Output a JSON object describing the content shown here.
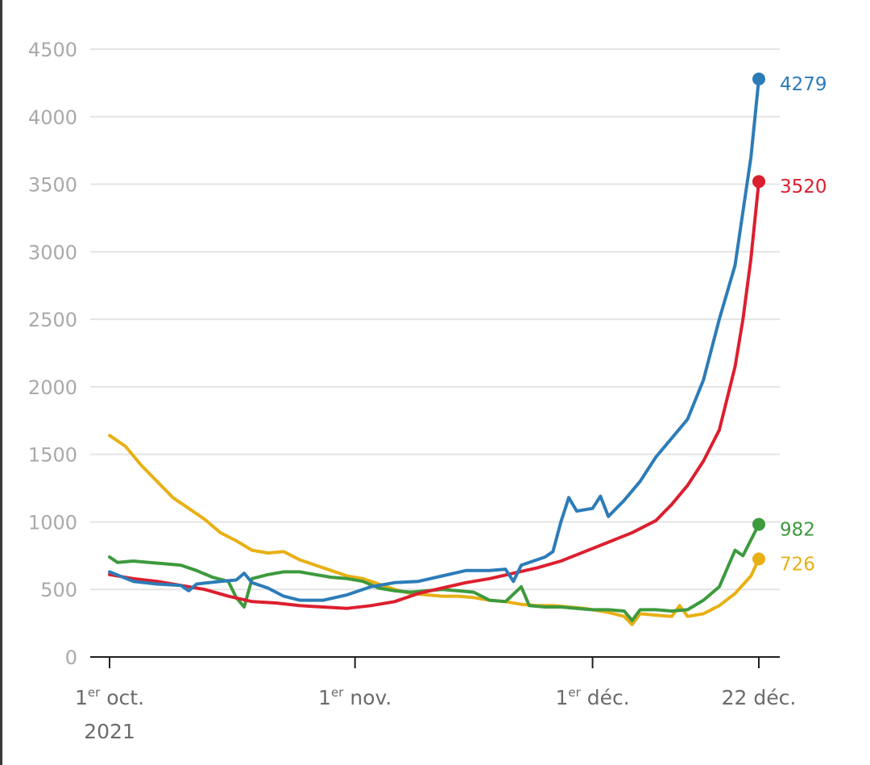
{
  "chart_data": {
    "type": "line",
    "ylim": [
      0,
      4500
    ],
    "yticks": [
      0,
      500,
      1000,
      1500,
      2000,
      2500,
      3000,
      3500,
      4000,
      4500
    ],
    "grid": true,
    "x_domain": [
      "2021-10-01",
      "2021-12-22"
    ],
    "xticks": [
      {
        "date": "2021-10-01",
        "label_main": "1",
        "label_sup": "er",
        "label_rest": " oct.",
        "label_year": "2021"
      },
      {
        "date": "2021-11-01",
        "label_main": "1",
        "label_sup": "er",
        "label_rest": " nov.",
        "label_year": ""
      },
      {
        "date": "2021-12-01",
        "label_main": "1",
        "label_sup": "er",
        "label_rest": " déc.",
        "label_year": ""
      },
      {
        "date": "2021-12-22",
        "label_main": "22 déc.",
        "label_sup": "",
        "label_rest": "",
        "label_year": ""
      }
    ],
    "series": [
      {
        "color": "#e8b015",
        "end_label": "726",
        "points": [
          [
            "2021-10-01",
            1640
          ],
          [
            "2021-10-03",
            1560
          ],
          [
            "2021-10-05",
            1420
          ],
          [
            "2021-10-07",
            1300
          ],
          [
            "2021-10-09",
            1180
          ],
          [
            "2021-10-11",
            1100
          ],
          [
            "2021-10-13",
            1020
          ],
          [
            "2021-10-15",
            920
          ],
          [
            "2021-10-17",
            860
          ],
          [
            "2021-10-19",
            790
          ],
          [
            "2021-10-21",
            770
          ],
          [
            "2021-10-23",
            780
          ],
          [
            "2021-10-25",
            720
          ],
          [
            "2021-10-27",
            680
          ],
          [
            "2021-10-29",
            640
          ],
          [
            "2021-10-31",
            600
          ],
          [
            "2021-11-02",
            580
          ],
          [
            "2021-11-04",
            540
          ],
          [
            "2021-11-06",
            500
          ],
          [
            "2021-11-08",
            470
          ],
          [
            "2021-11-10",
            460
          ],
          [
            "2021-11-12",
            450
          ],
          [
            "2021-11-14",
            450
          ],
          [
            "2021-11-16",
            440
          ],
          [
            "2021-11-18",
            420
          ],
          [
            "2021-11-20",
            410
          ],
          [
            "2021-11-22",
            390
          ],
          [
            "2021-11-24",
            380
          ],
          [
            "2021-11-26",
            380
          ],
          [
            "2021-11-28",
            370
          ],
          [
            "2021-11-30",
            360
          ],
          [
            "2021-12-01",
            350
          ],
          [
            "2021-12-03",
            330
          ],
          [
            "2021-12-05",
            300
          ],
          [
            "2021-12-06",
            240
          ],
          [
            "2021-12-07",
            320
          ],
          [
            "2021-12-09",
            310
          ],
          [
            "2021-12-11",
            300
          ],
          [
            "2021-12-12",
            380
          ],
          [
            "2021-12-13",
            300
          ],
          [
            "2021-12-15",
            320
          ],
          [
            "2021-12-17",
            380
          ],
          [
            "2021-12-19",
            470
          ],
          [
            "2021-12-21",
            600
          ],
          [
            "2021-12-22",
            726
          ]
        ]
      },
      {
        "color": "#3d9a3d",
        "end_label": "982",
        "points": [
          [
            "2021-10-01",
            740
          ],
          [
            "2021-10-02",
            700
          ],
          [
            "2021-10-04",
            710
          ],
          [
            "2021-10-06",
            700
          ],
          [
            "2021-10-08",
            690
          ],
          [
            "2021-10-10",
            680
          ],
          [
            "2021-10-12",
            640
          ],
          [
            "2021-10-14",
            590
          ],
          [
            "2021-10-16",
            560
          ],
          [
            "2021-10-17",
            440
          ],
          [
            "2021-10-18",
            370
          ],
          [
            "2021-10-19",
            580
          ],
          [
            "2021-10-21",
            610
          ],
          [
            "2021-10-23",
            630
          ],
          [
            "2021-10-25",
            630
          ],
          [
            "2021-10-27",
            610
          ],
          [
            "2021-10-29",
            590
          ],
          [
            "2021-10-31",
            580
          ],
          [
            "2021-11-02",
            560
          ],
          [
            "2021-11-04",
            510
          ],
          [
            "2021-11-06",
            490
          ],
          [
            "2021-11-08",
            480
          ],
          [
            "2021-11-10",
            490
          ],
          [
            "2021-11-12",
            500
          ],
          [
            "2021-11-14",
            490
          ],
          [
            "2021-11-16",
            480
          ],
          [
            "2021-11-18",
            420
          ],
          [
            "2021-11-20",
            410
          ],
          [
            "2021-11-22",
            520
          ],
          [
            "2021-11-23",
            380
          ],
          [
            "2021-11-25",
            370
          ],
          [
            "2021-11-27",
            370
          ],
          [
            "2021-11-29",
            360
          ],
          [
            "2021-12-01",
            350
          ],
          [
            "2021-12-03",
            350
          ],
          [
            "2021-12-05",
            340
          ],
          [
            "2021-12-06",
            270
          ],
          [
            "2021-12-07",
            350
          ],
          [
            "2021-12-09",
            350
          ],
          [
            "2021-12-11",
            340
          ],
          [
            "2021-12-13",
            350
          ],
          [
            "2021-12-15",
            420
          ],
          [
            "2021-12-17",
            520
          ],
          [
            "2021-12-19",
            790
          ],
          [
            "2021-12-20",
            750
          ],
          [
            "2021-12-22",
            982
          ]
        ]
      },
      {
        "color": "#dc1f2e",
        "end_label": "3520",
        "points": [
          [
            "2021-10-01",
            610
          ],
          [
            "2021-10-04",
            580
          ],
          [
            "2021-10-07",
            560
          ],
          [
            "2021-10-10",
            530
          ],
          [
            "2021-10-13",
            500
          ],
          [
            "2021-10-16",
            450
          ],
          [
            "2021-10-19",
            410
          ],
          [
            "2021-10-22",
            400
          ],
          [
            "2021-10-25",
            380
          ],
          [
            "2021-10-28",
            370
          ],
          [
            "2021-10-31",
            360
          ],
          [
            "2021-11-03",
            380
          ],
          [
            "2021-11-06",
            410
          ],
          [
            "2021-11-09",
            470
          ],
          [
            "2021-11-12",
            510
          ],
          [
            "2021-11-15",
            550
          ],
          [
            "2021-11-18",
            580
          ],
          [
            "2021-11-21",
            620
          ],
          [
            "2021-11-24",
            660
          ],
          [
            "2021-11-27",
            710
          ],
          [
            "2021-11-30",
            780
          ],
          [
            "2021-12-03",
            850
          ],
          [
            "2021-12-06",
            920
          ],
          [
            "2021-12-09",
            1010
          ],
          [
            "2021-12-11",
            1130
          ],
          [
            "2021-12-13",
            1270
          ],
          [
            "2021-12-15",
            1450
          ],
          [
            "2021-12-17",
            1680
          ],
          [
            "2021-12-19",
            2150
          ],
          [
            "2021-12-20",
            2500
          ],
          [
            "2021-12-21",
            2950
          ],
          [
            "2021-12-22",
            3520
          ]
        ]
      },
      {
        "color": "#2c7cb8",
        "end_label": "4279",
        "points": [
          [
            "2021-10-01",
            630
          ],
          [
            "2021-10-04",
            560
          ],
          [
            "2021-10-07",
            540
          ],
          [
            "2021-10-10",
            530
          ],
          [
            "2021-10-11",
            490
          ],
          [
            "2021-10-12",
            540
          ],
          [
            "2021-10-15",
            560
          ],
          [
            "2021-10-17",
            570
          ],
          [
            "2021-10-18",
            620
          ],
          [
            "2021-10-19",
            550
          ],
          [
            "2021-10-21",
            510
          ],
          [
            "2021-10-23",
            450
          ],
          [
            "2021-10-25",
            420
          ],
          [
            "2021-10-28",
            420
          ],
          [
            "2021-10-31",
            460
          ],
          [
            "2021-11-03",
            520
          ],
          [
            "2021-11-06",
            550
          ],
          [
            "2021-11-09",
            560
          ],
          [
            "2021-11-12",
            600
          ],
          [
            "2021-11-15",
            640
          ],
          [
            "2021-11-18",
            640
          ],
          [
            "2021-11-20",
            650
          ],
          [
            "2021-11-21",
            560
          ],
          [
            "2021-11-22",
            680
          ],
          [
            "2021-11-25",
            740
          ],
          [
            "2021-11-26",
            780
          ],
          [
            "2021-11-27",
            1000
          ],
          [
            "2021-11-28",
            1180
          ],
          [
            "2021-11-29",
            1080
          ],
          [
            "2021-12-01",
            1100
          ],
          [
            "2021-12-02",
            1190
          ],
          [
            "2021-12-03",
            1040
          ],
          [
            "2021-12-05",
            1160
          ],
          [
            "2021-12-07",
            1300
          ],
          [
            "2021-12-09",
            1480
          ],
          [
            "2021-12-11",
            1620
          ],
          [
            "2021-12-13",
            1760
          ],
          [
            "2021-12-15",
            2050
          ],
          [
            "2021-12-17",
            2500
          ],
          [
            "2021-12-19",
            2900
          ],
          [
            "2021-12-21",
            3700
          ],
          [
            "2021-12-22",
            4279
          ]
        ]
      }
    ]
  }
}
